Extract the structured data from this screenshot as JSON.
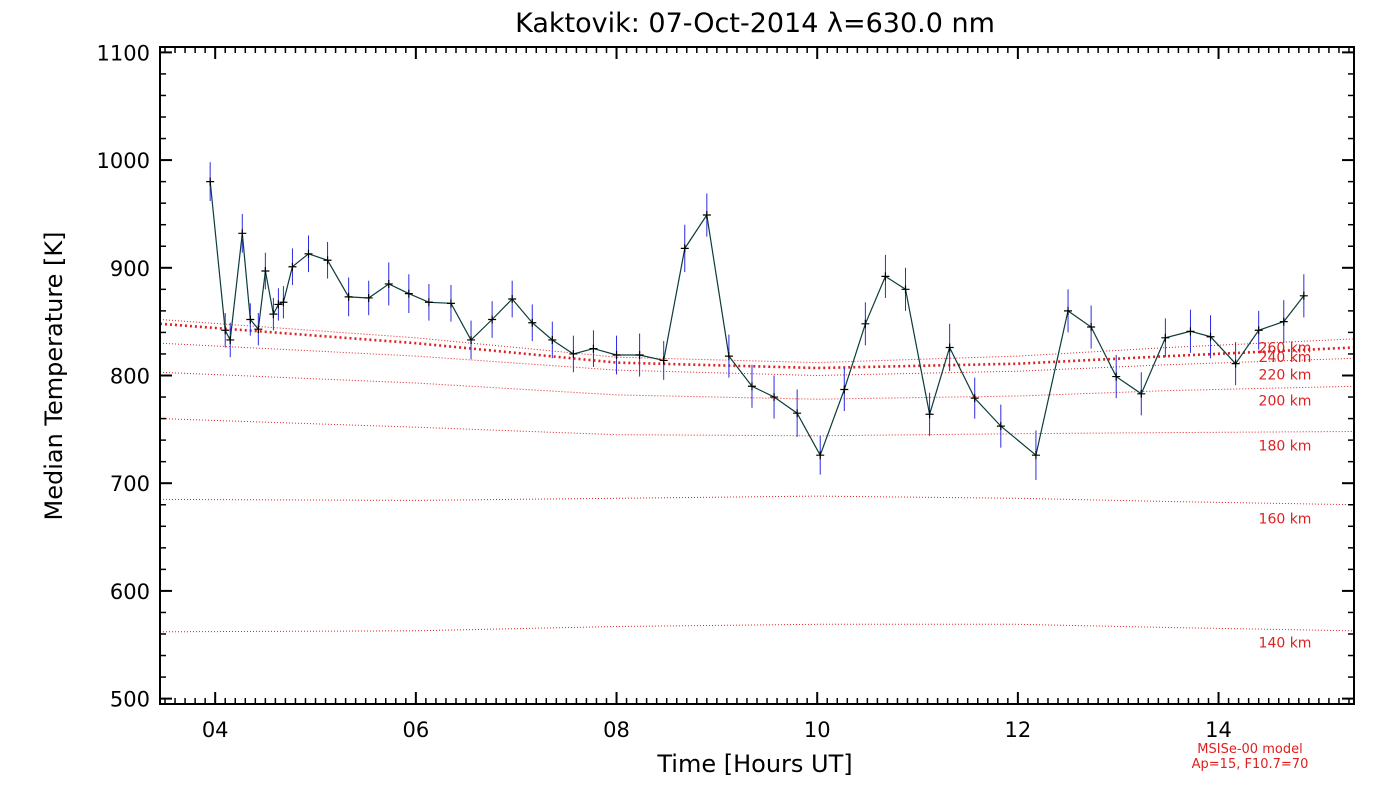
{
  "chart_data": {
    "type": "line",
    "title": "Kaktovik: 07-Oct-2014 λ=630.0 nm",
    "xlabel": "Time [Hours UT]",
    "ylabel": "Median Temperature [K]",
    "xlim": [
      3.45,
      15.35
    ],
    "ylim": [
      495,
      1105
    ],
    "xticks": [
      4,
      6,
      8,
      10,
      12,
      14
    ],
    "xtick_labels": [
      "04",
      "06",
      "08",
      "10",
      "12",
      "14"
    ],
    "yticks": [
      500,
      600,
      700,
      800,
      900,
      1000,
      1100
    ],
    "ytick_labels": [
      "500",
      "600",
      "700",
      "800",
      "900",
      "1000",
      "1100"
    ],
    "colors": {
      "measurement_line": "#0b3b3b",
      "error_bar": "#2a2ae0",
      "model": "#e02020"
    },
    "series": [
      {
        "name": "",
        "x": [
          3.95,
          4.1,
          4.15,
          4.27,
          4.35,
          4.43,
          4.5,
          4.58,
          4.63,
          4.68,
          4.77,
          4.93,
          5.12,
          5.33,
          5.53,
          5.73,
          5.93,
          6.13,
          6.35,
          6.55,
          6.76,
          6.96,
          7.16,
          7.36,
          7.57,
          7.77,
          8.0,
          8.23,
          8.47,
          8.68,
          8.9,
          9.12,
          9.35,
          9.57,
          9.8,
          10.03,
          10.27,
          10.48,
          10.68,
          10.88,
          11.12,
          11.32,
          11.57,
          11.83,
          12.18,
          12.5,
          12.73,
          12.98,
          13.23,
          13.47,
          13.72,
          13.92,
          14.17,
          14.4,
          14.65,
          14.85
        ],
        "y": [
          980,
          842,
          833,
          932,
          852,
          843,
          897,
          857,
          866,
          868,
          901,
          913,
          907,
          873,
          872,
          885,
          876,
          868,
          867,
          833,
          852,
          871,
          849,
          833,
          820,
          825,
          819,
          819,
          814,
          918,
          949,
          818,
          790,
          780,
          765,
          726,
          787,
          848,
          892,
          880,
          764,
          826,
          779,
          753,
          726,
          860,
          845,
          799,
          783,
          835,
          841,
          836,
          811,
          842,
          850,
          874
        ],
        "error": [
          18,
          16,
          16,
          18,
          15,
          15,
          17,
          15,
          15,
          15,
          17,
          17,
          17,
          18,
          16,
          20,
          18,
          17,
          17,
          18,
          17,
          17,
          17,
          17,
          17,
          17,
          18,
          20,
          18,
          22,
          20,
          20,
          20,
          20,
          22,
          18,
          20,
          20,
          20,
          20,
          20,
          22,
          19,
          20,
          23,
          20,
          20,
          20,
          20,
          18,
          20,
          20,
          20,
          18,
          20,
          20
        ]
      }
    ],
    "model_series": [
      {
        "name": "260 km",
        "label_y": 826,
        "x": [
          3.45,
          6.0,
          8.0,
          10.0,
          12.0,
          13.5,
          15.35
        ],
        "y": [
          852,
          835,
          817,
          812,
          818,
          826,
          834
        ],
        "emphasized": false
      },
      {
        "name": "240 km",
        "label_y": 817,
        "x": [
          3.45,
          6.0,
          8.0,
          10.0,
          12.0,
          13.5,
          15.35
        ],
        "y": [
          848,
          830,
          812,
          807,
          811,
          818,
          826
        ],
        "emphasized": true
      },
      {
        "name": "220 km",
        "label_y": 801,
        "x": [
          3.45,
          6.0,
          8.0,
          10.0,
          12.0,
          13.5,
          15.35
        ],
        "y": [
          830,
          818,
          805,
          800,
          804,
          810,
          816
        ],
        "emphasized": false
      },
      {
        "name": "200 km",
        "label_y": 777,
        "x": [
          3.45,
          6.0,
          8.0,
          10.0,
          12.0,
          13.5,
          15.35
        ],
        "y": [
          803,
          793,
          782,
          778,
          781,
          786,
          790
        ],
        "emphasized": false
      },
      {
        "name": "180 km",
        "label_y": 735,
        "x": [
          3.45,
          6.0,
          8.0,
          10.0,
          12.0,
          13.5,
          15.35
        ],
        "y": [
          760,
          752,
          745,
          744,
          746,
          747,
          748
        ],
        "emphasized": false
      },
      {
        "name": "160 km",
        "label_y": 667,
        "x": [
          3.45,
          6.0,
          8.0,
          10.0,
          12.0,
          13.5,
          15.35
        ],
        "y": [
          685,
          684,
          686,
          688,
          686,
          683,
          680
        ],
        "emphasized": false
      },
      {
        "name": "140 km",
        "label_y": 552,
        "x": [
          3.45,
          6.0,
          8.0,
          10.0,
          12.0,
          13.5,
          15.35
        ],
        "y": [
          562,
          563,
          567,
          569,
          569,
          566,
          563
        ],
        "emphasized": false
      }
    ],
    "model_note": [
      "MSISe-00 model",
      "Ap=15, F10.7=70"
    ],
    "grid": false,
    "legend": "none"
  }
}
